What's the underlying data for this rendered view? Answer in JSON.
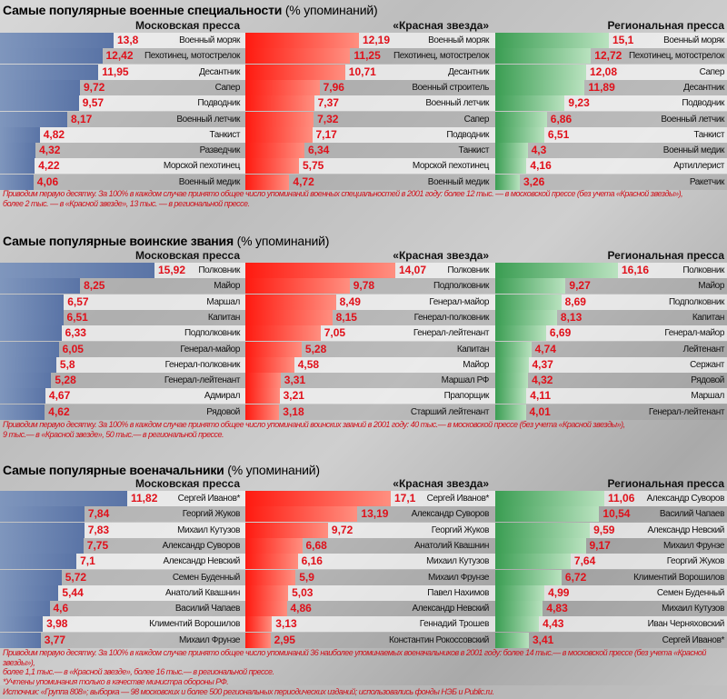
{
  "chart_data": [
    {
      "type": "bar",
      "orientation": "horizontal",
      "title_bold": "Самые популярные военные специальности",
      "title_rest": "(% упоминаний)",
      "footnote": [
        "Приводим первую десятку. За 100% в каждом случае принято общее число упоминаний военных специальностей в 2001 году: более 12 тыс. — в московской прессе (без учета «Красной звезды»),",
        "более 2 тыс. — в «Красной звезде», 13 тыс. — в региональной прессе."
      ],
      "panels": [
        {
          "header": "Московская пресса",
          "color": "#5a74a6",
          "items": [
            {
              "label": "Военный моряк",
              "value": 13.8
            },
            {
              "label": "Пехотинец, мотострелок",
              "value": 12.42
            },
            {
              "label": "Десантник",
              "value": 11.95
            },
            {
              "label": "Сапер",
              "value": 9.72
            },
            {
              "label": "Подводник",
              "value": 9.57
            },
            {
              "label": "Военный летчик",
              "value": 8.17
            },
            {
              "label": "Танкист",
              "value": 4.82
            },
            {
              "label": "Разведчик",
              "value": 4.32
            },
            {
              "label": "Морской пехотинец",
              "value": 4.22
            },
            {
              "label": "Военный медик",
              "value": 4.06
            }
          ]
        },
        {
          "header": "«Красная звезда»",
          "color": "#ff1a10",
          "items": [
            {
              "label": "Военный моряк",
              "value": 12.19
            },
            {
              "label": "Пехотинец, мотострелок",
              "value": 11.25
            },
            {
              "label": "Десантник",
              "value": 10.71
            },
            {
              "label": "Военный строитель",
              "value": 7.96
            },
            {
              "label": "Военный летчик",
              "value": 7.37
            },
            {
              "label": "Сапер",
              "value": 7.32
            },
            {
              "label": "Подводник",
              "value": 7.17
            },
            {
              "label": "Танкист",
              "value": 6.34
            },
            {
              "label": "Морской пехотинец",
              "value": 5.75
            },
            {
              "label": "Военный медик",
              "value": 4.72
            }
          ]
        },
        {
          "header": "Региональная пресса",
          "color": "#3a9d52",
          "items": [
            {
              "label": "Военный моряк",
              "value": 15.1
            },
            {
              "label": "Пехотинец, мотострелок",
              "value": 12.72
            },
            {
              "label": "Сапер",
              "value": 12.08
            },
            {
              "label": "Десантник",
              "value": 11.89
            },
            {
              "label": "Подводник",
              "value": 9.23
            },
            {
              "label": "Военный летчик",
              "value": 6.86
            },
            {
              "label": "Танкист",
              "value": 6.51
            },
            {
              "label": "Военный медик",
              "value": 4.3
            },
            {
              "label": "Артиллерист",
              "value": 4.16
            },
            {
              "label": "Ракетчик",
              "value": 3.26
            }
          ]
        }
      ]
    },
    {
      "type": "bar",
      "orientation": "horizontal",
      "title_bold": "Самые популярные воинские звания",
      "title_rest": "(% упоминаний)",
      "footnote": [
        "Приводим первую десятку. За 100% в каждом случае принято общее число упоминаний воинских званий в 2001 году: 40 тыс.— в московской прессе (без учета «Красной звезды»),",
        "9 тыс.— в «Красной звезде», 50 тыс.— в региональной прессе."
      ],
      "panels": [
        {
          "header": "Московская пресса",
          "color": "#5a74a6",
          "items": [
            {
              "label": "Полковник",
              "value": 15.92
            },
            {
              "label": "Майор",
              "value": 8.25
            },
            {
              "label": "Маршал",
              "value": 6.57
            },
            {
              "label": "Капитан",
              "value": 6.51
            },
            {
              "label": "Подполковник",
              "value": 6.33
            },
            {
              "label": "Генерал-майор",
              "value": 6.05
            },
            {
              "label": "Генерал-полковник",
              "value": 5.8
            },
            {
              "label": "Генерал-лейтенант",
              "value": 5.28
            },
            {
              "label": "Адмирал",
              "value": 4.67
            },
            {
              "label": "Рядовой",
              "value": 4.62
            }
          ]
        },
        {
          "header": "«Красная звезда»",
          "color": "#ff1a10",
          "items": [
            {
              "label": "Полковник",
              "value": 14.07
            },
            {
              "label": "Подполковник",
              "value": 9.78
            },
            {
              "label": "Генерал-майор",
              "value": 8.49
            },
            {
              "label": "Генерал-полковник",
              "value": 8.15
            },
            {
              "label": "Генерал-лейтенант",
              "value": 7.05
            },
            {
              "label": "Капитан",
              "value": 5.28
            },
            {
              "label": "Майор",
              "value": 4.58
            },
            {
              "label": "Маршал РФ",
              "value": 3.31
            },
            {
              "label": "Прапорщик",
              "value": 3.21
            },
            {
              "label": "Старший лейтенант",
              "value": 3.18
            }
          ]
        },
        {
          "header": "Региональная пресса",
          "color": "#3a9d52",
          "items": [
            {
              "label": "Полковник",
              "value": 16.16
            },
            {
              "label": "Майор",
              "value": 9.27
            },
            {
              "label": "Подполковник",
              "value": 8.69
            },
            {
              "label": "Капитан",
              "value": 8.13
            },
            {
              "label": "Генерал-майор",
              "value": 6.69
            },
            {
              "label": "Лейтенант",
              "value": 4.74
            },
            {
              "label": "Сержант",
              "value": 4.37
            },
            {
              "label": "Рядовой",
              "value": 4.32
            },
            {
              "label": "Маршал",
              "value": 4.11
            },
            {
              "label": "Генерал-лейтенант",
              "value": 4.01
            }
          ]
        }
      ]
    },
    {
      "type": "bar",
      "orientation": "horizontal",
      "title_bold": "Самые популярные военачальники",
      "title_rest": "(% упоминаний)",
      "footnote": [
        "Приводим первую десятку. За 100% в каждом случае принято общее число упоминаний 36 наиболее упоминаемых военачальников в 2001 году:  более 14 тыс.— в московской прессе (без учета «Красной звезды»),",
        "более 1,1 тыс.— в «Красной звезде», более 16 тыс.— в региональной прессе.",
        "*Учтены упоминания только в качестве министра обороны РФ."
      ],
      "panels": [
        {
          "header": "Московская пресса",
          "color": "#5a74a6",
          "items": [
            {
              "label": "Сергей Иванов*",
              "value": 11.82
            },
            {
              "label": "Георгий Жуков",
              "value": 7.84
            },
            {
              "label": "Михаил Кутузов",
              "value": 7.83
            },
            {
              "label": "Александр Суворов",
              "value": 7.75
            },
            {
              "label": "Александр Невский",
              "value": 7.1
            },
            {
              "label": "Семен Буденный",
              "value": 5.72
            },
            {
              "label": "Анатолий Квашнин",
              "value": 5.44
            },
            {
              "label": "Василий Чапаев",
              "value": 4.6
            },
            {
              "label": "Климентий Ворошилов",
              "value": 3.98
            },
            {
              "label": "Михаил Фрунзе",
              "value": 3.77
            }
          ]
        },
        {
          "header": "«Красная звезда»",
          "color": "#ff1a10",
          "items": [
            {
              "label": "Сергей Иванов*",
              "value": 17.1
            },
            {
              "label": "Александр Суворов",
              "value": 13.19
            },
            {
              "label": "Георгий Жуков",
              "value": 9.72
            },
            {
              "label": "Анатолий Квашнин",
              "value": 6.68
            },
            {
              "label": "Михаил Кутузов",
              "value": 6.16
            },
            {
              "label": "Михаил Фрунзе",
              "value": 5.9
            },
            {
              "label": "Павел Нахимов",
              "value": 5.03
            },
            {
              "label": "Александр Невский",
              "value": 4.86
            },
            {
              "label": "Геннадий Трошев",
              "value": 3.13
            },
            {
              "label": "Константин Рокоссовский",
              "value": 2.95
            }
          ]
        },
        {
          "header": "Региональная пресса",
          "color": "#3a9d52",
          "items": [
            {
              "label": "Александр Суворов",
              "value": 11.06
            },
            {
              "label": "Василий Чапаев",
              "value": 10.54
            },
            {
              "label": "Александр Невский",
              "value": 9.59
            },
            {
              "label": "Михаил Фрунзе",
              "value": 9.17
            },
            {
              "label": "Георгий Жуков",
              "value": 7.64
            },
            {
              "label": "Климентий Ворошилов",
              "value": 6.72
            },
            {
              "label": "Семен Буденный",
              "value": 4.99
            },
            {
              "label": "Михаил Кутузов",
              "value": 4.83
            },
            {
              "label": "Иван Черняховский",
              "value": 4.43
            },
            {
              "label": "Сергей Иванов*",
              "value": 3.41
            }
          ]
        }
      ]
    }
  ],
  "source": "Источник: «Группа 808»; выборка — 98 московских и более 500 региональных периодических изданий; использовались фонды НЭБ и Public.ru."
}
